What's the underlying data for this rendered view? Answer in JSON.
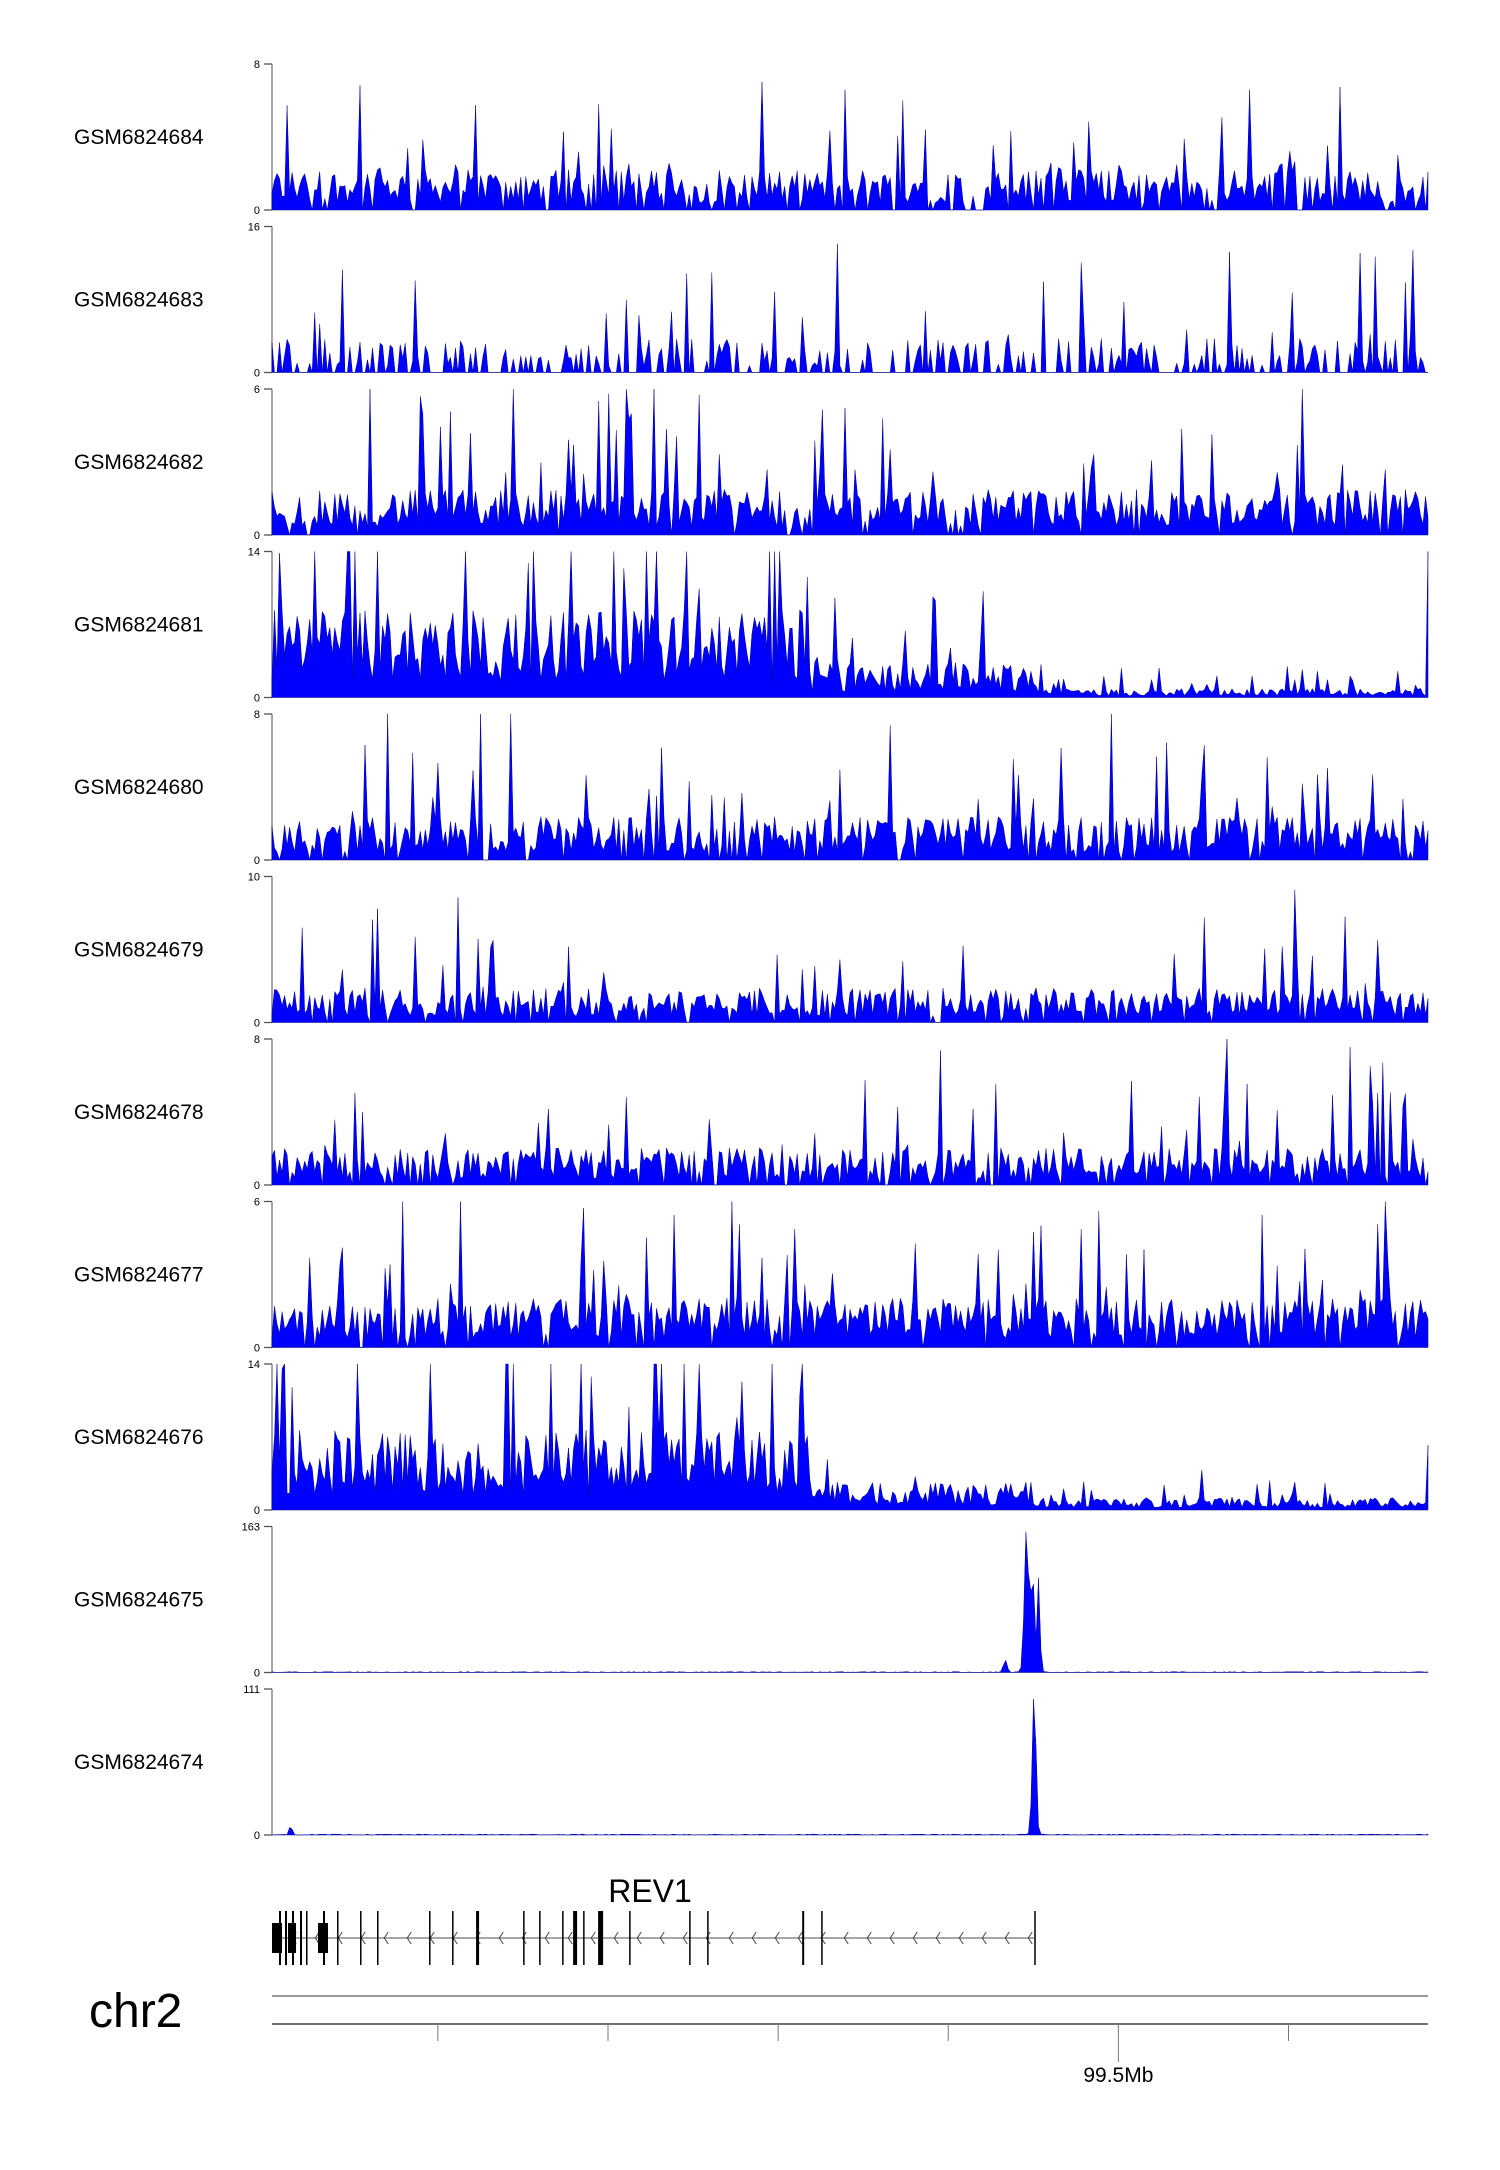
{
  "chart_data": {
    "type": "area",
    "title": "",
    "xlabel": "",
    "chromosome": "chr2",
    "xlim_bp": [
      99400500,
      99536400
    ],
    "x_ticks_bp": [
      99420000,
      99440000,
      99460000,
      99480000,
      99500000,
      99520000
    ],
    "x_tick_labels": [
      "",
      "",
      "",
      "",
      "99.5Mb",
      ""
    ],
    "color": "#0000ff",
    "tracks": [
      {
        "name": "GSM6824684",
        "ymax_label": "8",
        "ymin_label": "0",
        "ylim": [
          0,
          8
        ],
        "mean": 1.3,
        "sparsity": 0.15,
        "segments": []
      },
      {
        "name": "GSM6824683",
        "ymax_label": "16",
        "ymin_label": "0",
        "ylim": [
          0,
          16
        ],
        "mean": 2.2,
        "sparsity": 0.55,
        "segments": []
      },
      {
        "name": "GSM6824682",
        "ymax_label": "6",
        "ymin_label": "0",
        "ylim": [
          0,
          6
        ],
        "mean": 1.1,
        "sparsity": 0.08,
        "segments": []
      },
      {
        "name": "GSM6824681",
        "ymax_label": "14",
        "ymin_label": "0",
        "ylim": [
          0,
          14
        ],
        "mean": 5.0,
        "sparsity": 0.0,
        "segments": [
          [
            99400500,
            99464000,
            5.0
          ],
          [
            99464000,
            99490000,
            2.0
          ],
          [
            99490000,
            99536400,
            0.5
          ]
        ]
      },
      {
        "name": "GSM6824680",
        "ymax_label": "8",
        "ymin_label": "0",
        "ylim": [
          0,
          8
        ],
        "mean": 1.4,
        "sparsity": 0.1,
        "segments": []
      },
      {
        "name": "GSM6824679",
        "ymax_label": "10",
        "ymin_label": "0",
        "ylim": [
          0,
          10
        ],
        "mean": 1.4,
        "sparsity": 0.12,
        "segments": []
      },
      {
        "name": "GSM6824678",
        "ymax_label": "8",
        "ymin_label": "0",
        "ylim": [
          0,
          8
        ],
        "mean": 1.2,
        "sparsity": 0.12,
        "segments": []
      },
      {
        "name": "GSM6824677",
        "ymax_label": "6",
        "ymin_label": "0",
        "ylim": [
          0,
          6
        ],
        "mean": 1.2,
        "sparsity": 0.06,
        "segments": []
      },
      {
        "name": "GSM6824676",
        "ymax_label": "14",
        "ymin_label": "0",
        "ylim": [
          0,
          14
        ],
        "mean": 4.5,
        "sparsity": 0.0,
        "segments": [
          [
            99400500,
            99464000,
            4.5
          ],
          [
            99464000,
            99490000,
            1.6
          ],
          [
            99490000,
            99536400,
            0.7
          ]
        ]
      },
      {
        "name": "GSM6824675",
        "ymax_label": "163",
        "ymin_label": "0",
        "ylim": [
          0,
          163
        ],
        "mean": 1.0,
        "sparsity": 0.0,
        "segments": [],
        "peaks": [
          [
            99486700,
            14,
            300
          ],
          [
            99489200,
            163,
            350
          ],
          [
            99489900,
            120,
            250
          ],
          [
            99490600,
            105,
            250
          ]
        ]
      },
      {
        "name": "GSM6824674",
        "ymax_label": "111",
        "ymin_label": "0",
        "ylim": [
          0,
          111
        ],
        "mean": 1.0,
        "sparsity": 0.0,
        "segments": [],
        "peaks": [
          [
            99402700,
            8,
            200
          ],
          [
            99490100,
            111,
            300
          ]
        ]
      }
    ],
    "gene": {
      "name": "REV1",
      "strand": "-",
      "start_bp": 99400500,
      "end_bp": 99490111,
      "thick_blocks": [
        [
          99400500,
          1176
        ],
        [
          99402382,
          941
        ],
        [
          99405910,
          1176
        ]
      ],
      "exons": [
        [
          99401323,
          235
        ],
        [
          99402029,
          235
        ],
        [
          99402852,
          235
        ],
        [
          99403793,
          235
        ],
        [
          99404498,
          118
        ],
        [
          99406498,
          235
        ],
        [
          99408144,
          118
        ],
        [
          99410849,
          118
        ],
        [
          99412848,
          118
        ],
        [
          99418963,
          118
        ],
        [
          99421668,
          118
        ],
        [
          99424490,
          353
        ],
        [
          99430018,
          118
        ],
        [
          99431899,
          118
        ],
        [
          99434604,
          118
        ],
        [
          99435898,
          470
        ],
        [
          99437074,
          118
        ],
        [
          99438838,
          588
        ],
        [
          99442484,
          118
        ],
        [
          99449540,
          118
        ],
        [
          99451656,
          118
        ],
        [
          99462828,
          235
        ],
        [
          99465062,
          118
        ],
        [
          99490111,
          118
        ]
      ]
    }
  }
}
